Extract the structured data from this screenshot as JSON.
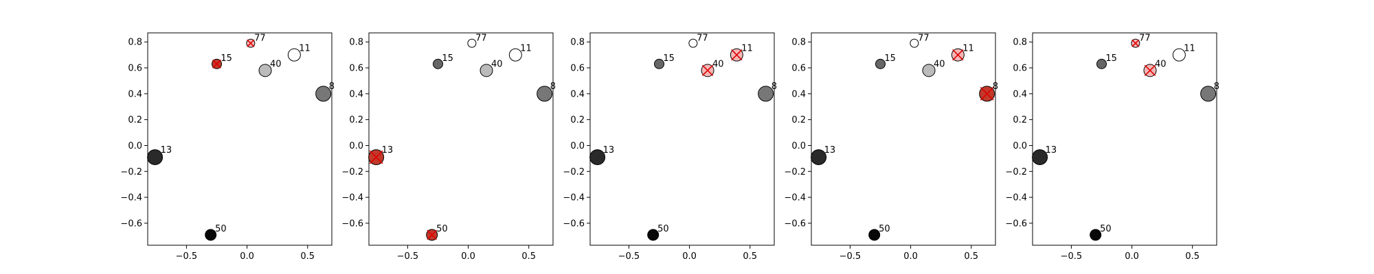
{
  "chart_data": [
    {
      "type": "scatter",
      "xlim": [
        -0.82,
        0.7
      ],
      "ylim": [
        -0.77,
        0.87
      ],
      "xticks": [
        -0.5,
        0.0,
        0.5
      ],
      "yticks": [
        -0.6,
        -0.4,
        -0.2,
        0.0,
        0.2,
        0.4,
        0.6,
        0.8
      ],
      "xtick_labels": [
        "−0.5",
        "0.0",
        "0.5"
      ],
      "ytick_labels": [
        "−0.6",
        "−0.4",
        "−0.2",
        "0.0",
        "0.2",
        "0.4",
        "0.6",
        "0.8"
      ],
      "points": [
        {
          "label": "77",
          "x": 0.03,
          "y": 0.79,
          "gray": "#ffffff",
          "selected": true
        },
        {
          "label": "11",
          "x": 0.39,
          "y": 0.7,
          "gray": "#ffffff",
          "selected": false
        },
        {
          "label": "15",
          "x": -0.25,
          "y": 0.63,
          "gray": "#666666",
          "selected": true
        },
        {
          "label": "40",
          "x": 0.15,
          "y": 0.58,
          "gray": "#bbbbbb",
          "selected": false
        },
        {
          "label": "8",
          "x": 0.63,
          "y": 0.4,
          "gray": "#777777",
          "selected": false
        },
        {
          "label": "13",
          "x": -0.76,
          "y": -0.09,
          "gray": "#2a2a2a",
          "selected": false
        },
        {
          "label": "50",
          "x": -0.3,
          "y": -0.69,
          "gray": "#080808",
          "selected": false
        }
      ]
    },
    {
      "type": "scatter",
      "xlim": [
        -0.82,
        0.7
      ],
      "ylim": [
        -0.77,
        0.87
      ],
      "xticks": [
        -0.5,
        0.0,
        0.5
      ],
      "yticks": [
        -0.6,
        -0.4,
        -0.2,
        0.0,
        0.2,
        0.4,
        0.6,
        0.8
      ],
      "xtick_labels": [
        "−0.5",
        "0.0",
        "0.5"
      ],
      "ytick_labels": [
        "−0.6",
        "−0.4",
        "−0.2",
        "0.0",
        "0.2",
        "0.4",
        "0.6",
        "0.8"
      ],
      "points": [
        {
          "label": "77",
          "x": 0.03,
          "y": 0.79,
          "gray": "#ffffff",
          "selected": false
        },
        {
          "label": "11",
          "x": 0.39,
          "y": 0.7,
          "gray": "#ffffff",
          "selected": false
        },
        {
          "label": "15",
          "x": -0.25,
          "y": 0.63,
          "gray": "#666666",
          "selected": false
        },
        {
          "label": "40",
          "x": 0.15,
          "y": 0.58,
          "gray": "#bbbbbb",
          "selected": false
        },
        {
          "label": "8",
          "x": 0.63,
          "y": 0.4,
          "gray": "#777777",
          "selected": false
        },
        {
          "label": "13",
          "x": -0.76,
          "y": -0.09,
          "gray": "#2a2a2a",
          "selected": true
        },
        {
          "label": "50",
          "x": -0.3,
          "y": -0.69,
          "gray": "#080808",
          "selected": true
        }
      ]
    },
    {
      "type": "scatter",
      "xlim": [
        -0.82,
        0.7
      ],
      "ylim": [
        -0.77,
        0.87
      ],
      "xticks": [
        -0.5,
        0.0,
        0.5
      ],
      "yticks": [
        -0.6,
        -0.4,
        -0.2,
        0.0,
        0.2,
        0.4,
        0.6,
        0.8
      ],
      "xtick_labels": [
        "−0.5",
        "0.0",
        "0.5"
      ],
      "ytick_labels": [
        "−0.6",
        "−0.4",
        "−0.2",
        "0.0",
        "0.2",
        "0.4",
        "0.6",
        "0.8"
      ],
      "points": [
        {
          "label": "77",
          "x": 0.03,
          "y": 0.79,
          "gray": "#ffffff",
          "selected": false
        },
        {
          "label": "11",
          "x": 0.39,
          "y": 0.7,
          "gray": "#ffffff",
          "selected": true
        },
        {
          "label": "15",
          "x": -0.25,
          "y": 0.63,
          "gray": "#666666",
          "selected": false
        },
        {
          "label": "40",
          "x": 0.15,
          "y": 0.58,
          "gray": "#bbbbbb",
          "selected": true
        },
        {
          "label": "8",
          "x": 0.63,
          "y": 0.4,
          "gray": "#777777",
          "selected": false
        },
        {
          "label": "13",
          "x": -0.76,
          "y": -0.09,
          "gray": "#2a2a2a",
          "selected": false
        },
        {
          "label": "50",
          "x": -0.3,
          "y": -0.69,
          "gray": "#080808",
          "selected": false
        }
      ]
    },
    {
      "type": "scatter",
      "xlim": [
        -0.82,
        0.7
      ],
      "ylim": [
        -0.77,
        0.87
      ],
      "xticks": [
        -0.5,
        0.0,
        0.5
      ],
      "yticks": [
        -0.6,
        -0.4,
        -0.2,
        0.0,
        0.2,
        0.4,
        0.6,
        0.8
      ],
      "xtick_labels": [
        "−0.5",
        "0.0",
        "0.5"
      ],
      "ytick_labels": [
        "−0.6",
        "−0.4",
        "−0.2",
        "0.0",
        "0.2",
        "0.4",
        "0.6",
        "0.8"
      ],
      "points": [
        {
          "label": "77",
          "x": 0.03,
          "y": 0.79,
          "gray": "#ffffff",
          "selected": false
        },
        {
          "label": "11",
          "x": 0.39,
          "y": 0.7,
          "gray": "#ffffff",
          "selected": true
        },
        {
          "label": "15",
          "x": -0.25,
          "y": 0.63,
          "gray": "#666666",
          "selected": false
        },
        {
          "label": "40",
          "x": 0.15,
          "y": 0.58,
          "gray": "#bbbbbb",
          "selected": false
        },
        {
          "label": "8",
          "x": 0.63,
          "y": 0.4,
          "gray": "#777777",
          "selected": true
        },
        {
          "label": "13",
          "x": -0.76,
          "y": -0.09,
          "gray": "#2a2a2a",
          "selected": false
        },
        {
          "label": "50",
          "x": -0.3,
          "y": -0.69,
          "gray": "#080808",
          "selected": false
        }
      ]
    },
    {
      "type": "scatter",
      "xlim": [
        -0.82,
        0.7
      ],
      "ylim": [
        -0.77,
        0.87
      ],
      "xticks": [
        -0.5,
        0.0,
        0.5
      ],
      "yticks": [
        -0.6,
        -0.4,
        -0.2,
        0.0,
        0.2,
        0.4,
        0.6,
        0.8
      ],
      "xtick_labels": [
        "−0.5",
        "0.0",
        "0.5"
      ],
      "ytick_labels": [
        "−0.6",
        "−0.4",
        "−0.2",
        "0.0",
        "0.2",
        "0.4",
        "0.6",
        "0.8"
      ],
      "points": [
        {
          "label": "77",
          "x": 0.03,
          "y": 0.79,
          "gray": "#ffffff",
          "selected": true
        },
        {
          "label": "11",
          "x": 0.39,
          "y": 0.7,
          "gray": "#ffffff",
          "selected": false
        },
        {
          "label": "15",
          "x": -0.25,
          "y": 0.63,
          "gray": "#666666",
          "selected": false
        },
        {
          "label": "40",
          "x": 0.15,
          "y": 0.58,
          "gray": "#bbbbbb",
          "selected": true
        },
        {
          "label": "8",
          "x": 0.63,
          "y": 0.4,
          "gray": "#777777",
          "selected": false
        },
        {
          "label": "13",
          "x": -0.76,
          "y": -0.09,
          "gray": "#2a2a2a",
          "selected": false
        },
        {
          "label": "50",
          "x": -0.3,
          "y": -0.69,
          "gray": "#080808",
          "selected": false
        }
      ]
    }
  ],
  "colors": {
    "highlight_fill": "#f4b6b6",
    "highlight_dark": "#c0392b",
    "marker_cross": "#e00000"
  }
}
